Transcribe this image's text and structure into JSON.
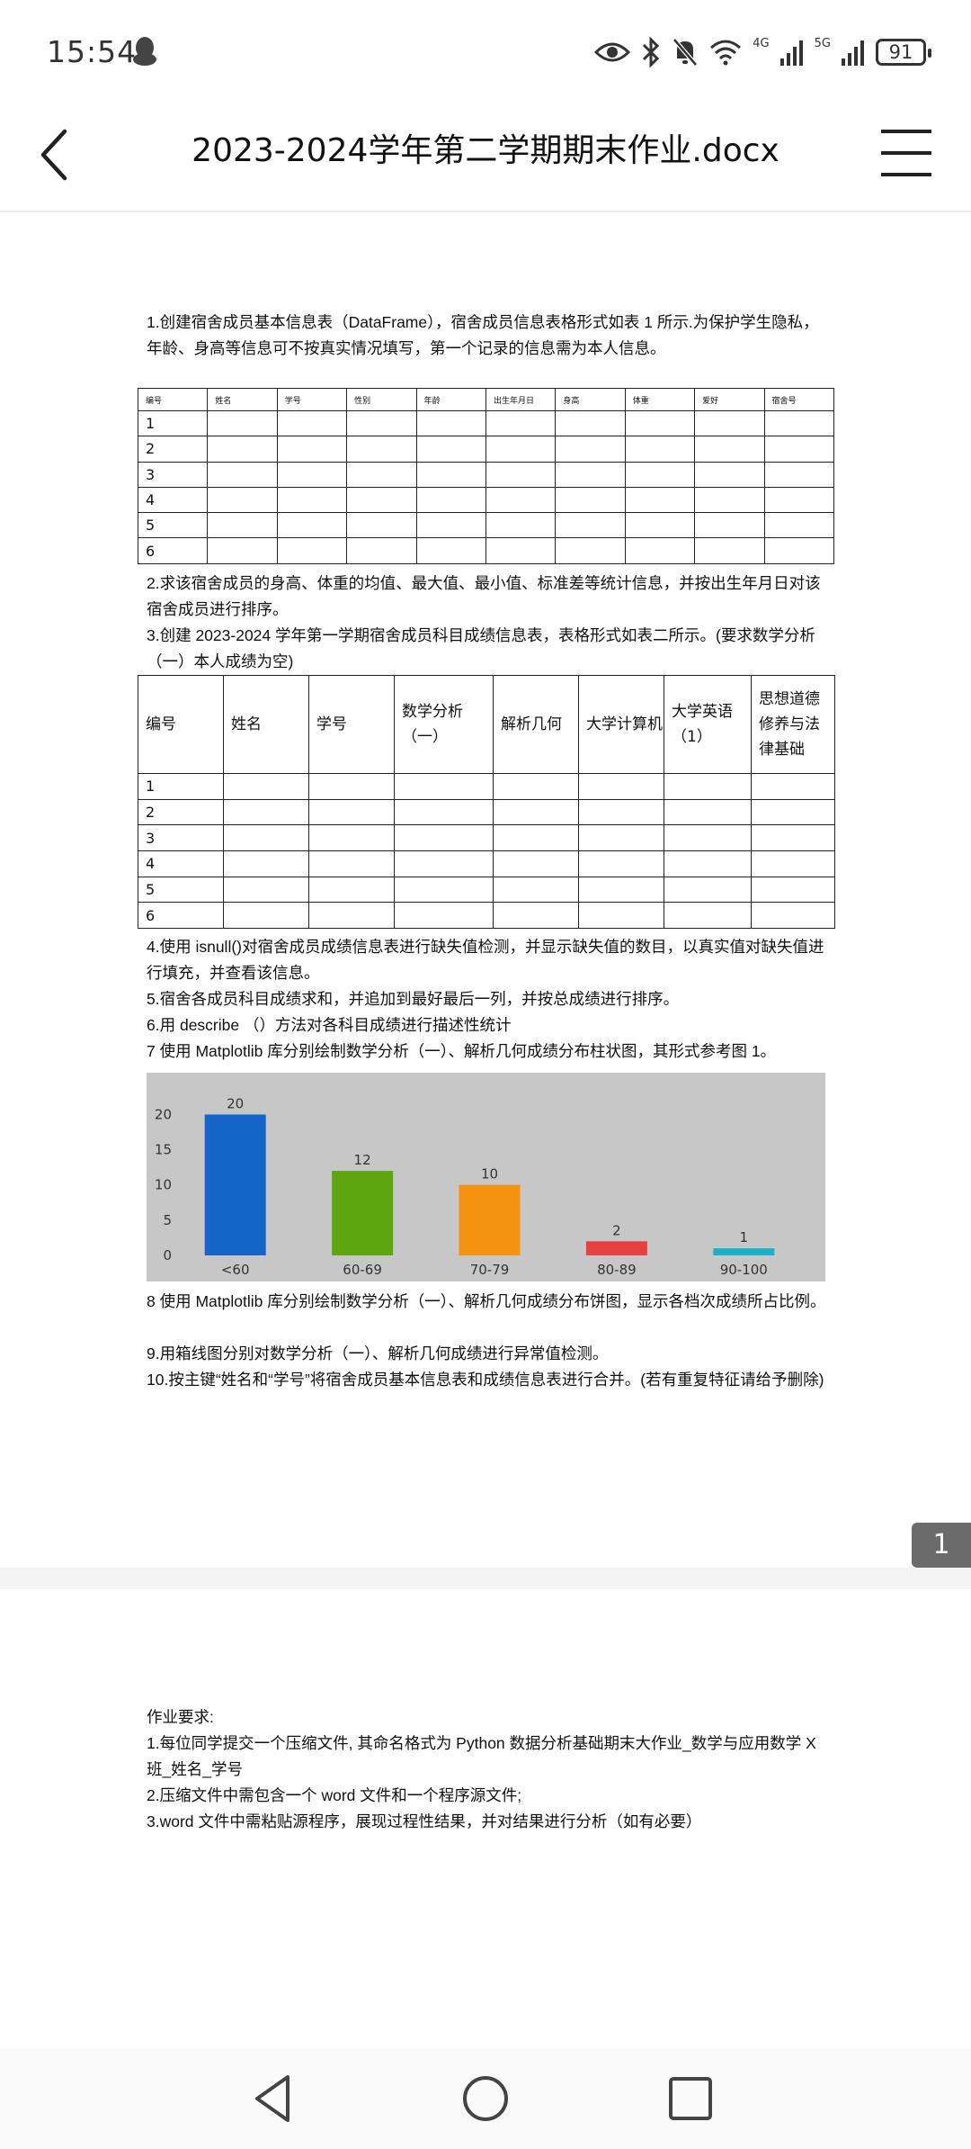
{
  "status_bar": {
    "time": "15:54",
    "network_4g": "4G",
    "network_5g": "5G",
    "battery": "91"
  },
  "header": {
    "title": "2023-2024学年第二学期期末作业.docx"
  },
  "page1": {
    "para1": "1.创建宿舍成员基本信息表（DataFrame），宿舍成员信息表格形式如表 1 所示.为保护学生隐私，年龄、身高等信息可不按真实情况填写，第一个记录的信息需为本人信息。",
    "table1": {
      "headers": [
        "编号",
        "姓名",
        "学号",
        "性别",
        "年龄",
        "出生年月日",
        "身高",
        "体重",
        "爱好",
        "宿舍号"
      ],
      "rows": [
        "1",
        "2",
        "3",
        "4",
        "5",
        "6"
      ]
    },
    "para2": "2.求该宿舍成员的身高、体重的均值、最大值、最小值、标准差等统计信息，并按出生年月日对该宿舍成员进行排序。",
    "para3": "3.创建 2023-2024 学年第一学期宿舍成员科目成绩信息表，表格形式如表二所示。(要求数学分析（一）本人成绩为空)",
    "table2": {
      "headers": [
        "编号",
        "姓名",
        "学号",
        "数学分析（一）",
        "解析几何",
        "大学计算机",
        "大学英语（1）",
        "思想道德修养与法律基础"
      ],
      "rows": [
        "1",
        "2",
        "3",
        "4",
        "5",
        "6"
      ]
    },
    "para4": "4.使用 isnull()对宿舍成员成绩信息表进行缺失值检测，并显示缺失值的数目，以真实值对缺失值进行填充，并查看该信息。",
    "para5": "5.宿舍各成员科目成绩求和，并追加到最好最后一列，并按总成绩进行排序。",
    "para6": "6.用 describe （）方法对各科目成绩进行描述性统计",
    "para7": "7 使用 Matplotlib 库分别绘制数学分析（一）、解析几何成绩分布柱状图，其形式参考图 1。",
    "para8": "8 使用 Matplotlib 库分别绘制数学分析（一）、解析几何成绩分布饼图，显示各档次成绩所占比例。",
    "para9": "9.用箱线图分别对数学分析（一）、解析几何成绩进行异常值检测。",
    "para10": "10.按主键“姓名和“学号”将宿舍成员基本信息表和成绩信息表进行合并。(若有重复特征请给予删除)"
  },
  "chart_data": {
    "type": "bar",
    "categories": [
      "<60",
      "60-69",
      "70-79",
      "80-89",
      "90-100"
    ],
    "values": [
      20,
      12,
      10,
      2,
      1
    ],
    "ylim": [
      0,
      23
    ],
    "yticks": [
      0,
      5,
      10,
      15,
      20
    ],
    "colors": [
      "#1565c8",
      "#5ea610",
      "#f39310",
      "#e84040",
      "#1ab0c8"
    ],
    "grid": false
  },
  "page2": {
    "heading": "作业要求:",
    "req1": "1.每位同学提交一个压缩文件, 其命名格式为 Python 数据分析基础期末大作业_数学与应用数学 X 班_姓名_学号",
    "req2": "2.压缩文件中需包含一个 word 文件和一个程序源文件;",
    "req3": "3.word 文件中需粘贴源程序，展现过程性结果，并对结果进行分析（如有必要）"
  },
  "page_indicator": "1",
  "icons": [
    "back-arrow-icon",
    "menu-icon",
    "eye-icon",
    "bluetooth-icon",
    "bell-off-icon",
    "wifi-icon",
    "signal-icon",
    "battery-icon",
    "qq-icon",
    "nav-back-icon",
    "nav-home-icon",
    "nav-recents-icon"
  ]
}
